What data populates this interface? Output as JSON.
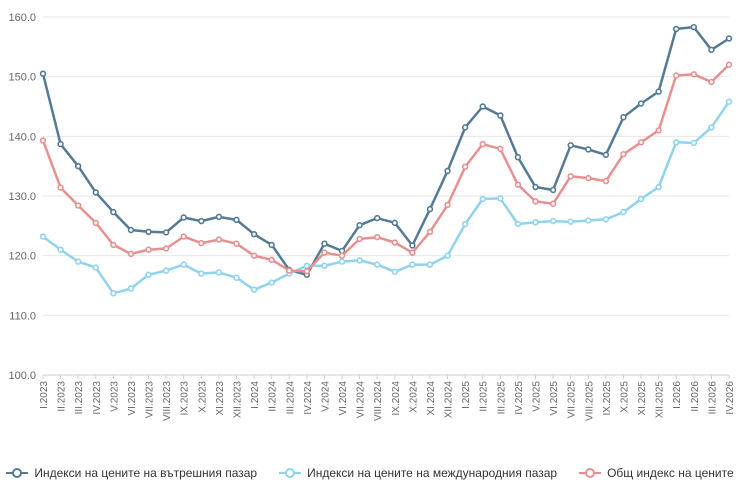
{
  "chart_data": {
    "type": "line",
    "ylim": [
      100,
      160
    ],
    "y_ticks": [
      "100.0",
      "110.0",
      "120.0",
      "130.0",
      "140.0",
      "150.0",
      "160.0"
    ],
    "grid": true,
    "legend_position": "bottom",
    "categories": [
      "I.2023",
      "II.2023",
      "III.2023",
      "IV.2023",
      "V.2023",
      "VI.2023",
      "VII.2023",
      "VIII.2023",
      "IX.2023",
      "X.2023",
      "XI.2023",
      "XII.2023",
      "I.2024",
      "II.2024",
      "III.2024",
      "IV.2024",
      "V.2024",
      "VI.2024",
      "VII.2024",
      "VIII.2024",
      "IX.2024",
      "X.2024",
      "XI.2024",
      "XII.2024",
      "I.2025",
      "II.2025",
      "III.2025",
      "IV.2025",
      "V.2025",
      "VI.2025",
      "VII.2025",
      "VIII.2025",
      "IX.2025",
      "X.2025",
      "XI.2025",
      "XII.2025",
      "I.2026",
      "II.2026",
      "III.2026",
      "IV.2026"
    ],
    "series": [
      {
        "name": "Индекси на цените на вътрешния пазар",
        "color": "#557a95",
        "values": [
          150.5,
          138.7,
          135.0,
          130.6,
          127.3,
          124.3,
          124.0,
          123.9,
          126.4,
          125.8,
          126.5,
          126.0,
          123.6,
          121.8,
          117.6,
          116.8,
          122.0,
          120.8,
          125.1,
          126.3,
          125.5,
          121.7,
          127.8,
          134.2,
          141.5,
          145.0,
          143.5,
          136.5,
          131.5,
          131.0,
          138.5,
          137.8,
          136.9,
          143.2,
          145.5,
          147.5,
          158.0,
          158.3,
          154.5,
          156.4
        ]
      },
      {
        "name": "Индекси на цените на международния пазар",
        "color": "#8fd3f0",
        "values": [
          123.2,
          121.0,
          119.0,
          118.0,
          113.7,
          114.5,
          116.8,
          117.5,
          118.5,
          117.0,
          117.2,
          116.3,
          114.3,
          115.5,
          117.0,
          118.3,
          118.3,
          119.0,
          119.2,
          118.5,
          117.3,
          118.5,
          118.5,
          120.0,
          125.3,
          129.5,
          129.6,
          125.3,
          125.6,
          125.8,
          125.7,
          125.9,
          126.1,
          127.3,
          129.5,
          131.5,
          139.0,
          138.9,
          141.5,
          145.8
        ]
      },
      {
        "name": "Общ индекс на цените",
        "color": "#e89090",
        "values": [
          139.3,
          131.4,
          128.4,
          125.5,
          121.8,
          120.3,
          121.0,
          121.2,
          123.2,
          122.1,
          122.7,
          122.0,
          120.0,
          119.3,
          117.5,
          117.4,
          120.5,
          120.0,
          122.8,
          123.1,
          122.2,
          120.5,
          124.0,
          128.5,
          134.9,
          138.7,
          137.9,
          131.9,
          129.1,
          128.7,
          133.3,
          133.0,
          132.5,
          137.0,
          139.0,
          141.0,
          150.2,
          150.4,
          149.1,
          152.0
        ]
      }
    ]
  }
}
